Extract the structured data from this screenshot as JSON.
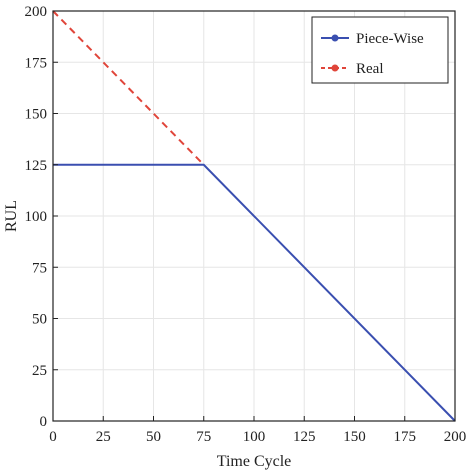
{
  "chart_data": {
    "type": "line",
    "xlabel": "Time Cycle",
    "ylabel": "RUL",
    "xlim": [
      0,
      200
    ],
    "ylim": [
      0,
      200
    ],
    "x_ticks": [
      0,
      25,
      50,
      75,
      100,
      125,
      150,
      175,
      200
    ],
    "y_ticks": [
      0,
      25,
      50,
      75,
      100,
      125,
      150,
      175,
      200
    ],
    "x_tick_labels": [
      "0",
      "25",
      "50",
      "75",
      "100",
      "125",
      "150",
      "175",
      "200"
    ],
    "y_tick_labels": [
      "0",
      "25",
      "50",
      "75",
      "100",
      "125",
      "150",
      "175",
      "200"
    ],
    "grid": true,
    "legend_position": "top-right",
    "series": [
      {
        "name": "Piece-Wise",
        "color": "#3a4fb0",
        "style": "solid",
        "points": [
          [
            0,
            125
          ],
          [
            75,
            125
          ],
          [
            200,
            0
          ]
        ]
      },
      {
        "name": "Real",
        "color": "#e0453a",
        "style": "dashed",
        "points": [
          [
            0,
            200
          ],
          [
            75,
            125
          ]
        ]
      }
    ]
  }
}
